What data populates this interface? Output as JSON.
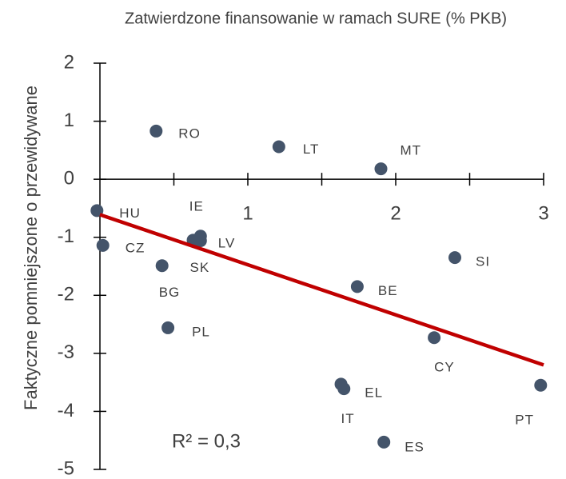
{
  "chart_data": {
    "type": "scatter",
    "title": "Zatwierdzone finansowanie w ramach SURE (% PKB)",
    "ylabel": "Faktyczne pomniejszone o przewidywane",
    "annotation": "R² = 0,3",
    "color": "#44546a",
    "labels": [
      "RO",
      "LT",
      "MT",
      "HU",
      "CZ",
      "IE",
      "LV",
      "SK",
      "BG",
      "PL",
      "BE",
      "SI",
      "CY",
      "EL",
      "IT",
      "ES",
      "PT"
    ],
    "x": [
      0.38,
      1.21,
      1.9,
      -0.02,
      0.02,
      0.68,
      0.68,
      0.63,
      0.42,
      0.46,
      1.74,
      2.4,
      2.26,
      1.65,
      1.63,
      1.92,
      2.98
    ],
    "values": [
      0.83,
      0.56,
      0.18,
      -0.54,
      -1.14,
      -0.98,
      -1.06,
      -1.05,
      -1.49,
      -2.56,
      -1.85,
      -1.35,
      -2.73,
      -3.61,
      -3.53,
      -4.53,
      -3.55
    ],
    "trendline": {
      "color": "#c00000",
      "x": [
        0,
        3
      ],
      "values": [
        -0.61,
        -3.2
      ]
    },
    "xlim": [
      0,
      3
    ],
    "xticks": [
      1,
      2,
      3
    ],
    "xminor": [
      0.5,
      1.5,
      2.5
    ],
    "ylim": [
      -5,
      2
    ],
    "yticks": [
      -5,
      -4,
      -3,
      -2,
      -1,
      0,
      1,
      2
    ]
  }
}
